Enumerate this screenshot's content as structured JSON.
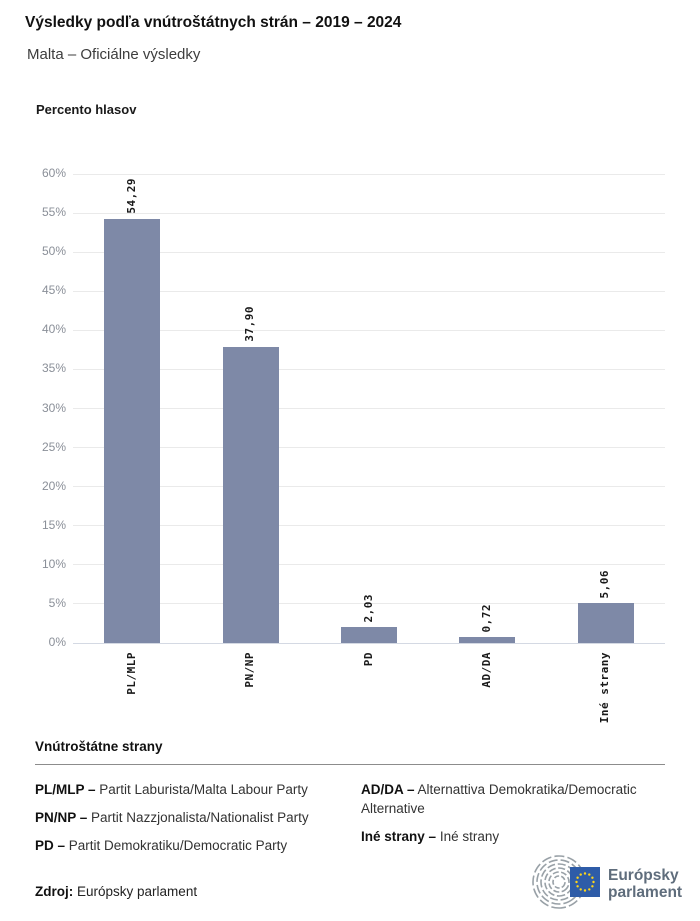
{
  "header": {
    "title": "Výsledky podľa vnútroštátnych strán – 2019 – 2024",
    "subtitle": "Malta – Oficiálne výsledky"
  },
  "chart_data": {
    "type": "bar",
    "title": "Percento hlasov",
    "categories": [
      "PL/MLP",
      "PN/NP",
      "PD",
      "AD/DA",
      "Iné strany"
    ],
    "values": [
      54.29,
      37.9,
      2.03,
      0.72,
      5.06
    ],
    "value_labels": [
      "54,29",
      "37,90",
      "2,03",
      "0,72",
      "5,06"
    ],
    "xlabel": "",
    "ylabel": "Percento hlasov",
    "ylim": [
      0,
      60
    ],
    "tick_step": 5,
    "tick_suffix": "%",
    "grid": true,
    "legend_position": "none",
    "bar_color": "#7e89a7"
  },
  "legend": {
    "title": "Vnútroštátne strany",
    "columns": {
      "left": [
        {
          "abbr": "PL/MLP –",
          "name": "Partit Laburista/Malta Labour Party"
        },
        {
          "abbr": "PN/NP –",
          "name": "Partit Nazzjonalista/Nationalist Party"
        },
        {
          "abbr": "PD –",
          "name": "Partit Demokratiku/Democratic Party"
        }
      ],
      "right": [
        {
          "abbr": "AD/DA –",
          "name": "Alternattiva Demokratika/Democratic Alternative"
        },
        {
          "abbr": "Iné strany –",
          "name": "Iné strany"
        }
      ]
    }
  },
  "footer": {
    "source_label": "Zdroj:",
    "source_value": "Európsky parlament",
    "logo": {
      "line1": "Európsky",
      "line2": "parlament"
    }
  },
  "colors": {
    "bar": "#7e89a7",
    "gridline": "#eaeaea",
    "zero_line": "#d4d9e3",
    "axis_text": "#8a8f98",
    "eu_blue": "#2e5ca8",
    "star_yellow": "#ffd617",
    "logo_gray": "#99a1a7",
    "logo_text": "#5f6d7c"
  }
}
